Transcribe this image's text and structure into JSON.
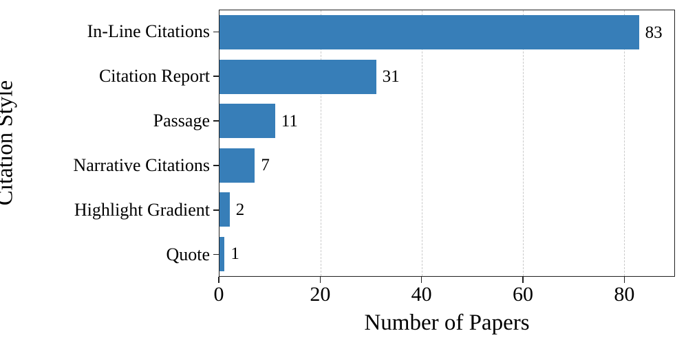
{
  "chart_data": {
    "type": "bar",
    "orientation": "horizontal",
    "title": "",
    "xlabel": "Number of Papers",
    "ylabel": "Citation Style",
    "categories": [
      "In-Line Citations",
      "Citation Report",
      "Passage",
      "Narrative Citations",
      "Highlight Gradient",
      "Quote"
    ],
    "values": [
      83,
      31,
      11,
      7,
      2,
      1
    ],
    "value_labels": [
      "83",
      "31",
      "11",
      "7",
      "2",
      "1"
    ],
    "xlim": [
      0,
      90
    ],
    "xticks": [
      0,
      20,
      40,
      60,
      80
    ],
    "xtick_labels": [
      "0",
      "20",
      "40",
      "60",
      "80"
    ],
    "grid": "vertical-dashed",
    "legend": "none",
    "colors": {
      "bar": "#377eb8",
      "axis": "#1f1f1f",
      "gridline": "#c9c9c9",
      "text": "#000000",
      "background": "#ffffff"
    }
  }
}
